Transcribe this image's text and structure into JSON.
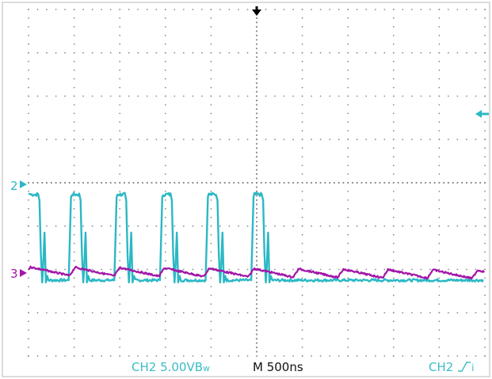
{
  "colors": {
    "background": "#ffffff",
    "border": "#d0d0d0",
    "grid": "#8a8a8a",
    "ch2": "#2bb8c4",
    "ch3": "#a316a8",
    "marker": "#000000",
    "status_ch": "#3bbcc4",
    "status_time": "#111111"
  },
  "markers": {
    "ch2_label": "2",
    "ch3_label": "3",
    "trigger_position_icon": "arrow-down-icon",
    "trigger_level_icon": "arrow-left-icon"
  },
  "status_bar": {
    "ch2_scale": "CH2  5.00VB",
    "ch2_bw_suffix": "w",
    "timebase": "M 500ns",
    "trigger_source": "CH2",
    "trigger_slope_icon": "rising-edge-icon",
    "trigger_tail": "i"
  },
  "chart_data": {
    "type": "line",
    "x_divisions": 10,
    "y_divisions": 8,
    "period_div": 0.98,
    "series": [
      {
        "channel": "2",
        "color": "#2bb8c4",
        "wave": "pulse",
        "high_div": 3.75,
        "low_div": 1.75,
        "ground_div": 1.75
      },
      {
        "channel": "3",
        "color": "#a316a8",
        "wave": "ramp",
        "ground_div": 0.1,
        "peak_div": 0.35
      }
    ]
  }
}
